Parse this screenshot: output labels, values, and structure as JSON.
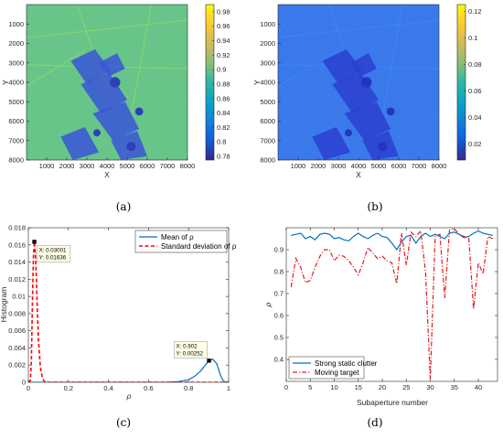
{
  "chart_data": [
    {
      "id": "a",
      "type": "heatmap",
      "panel_label": "(a)",
      "xlabel": "X",
      "ylabel": "Y",
      "xlim": [
        0,
        8000
      ],
      "ylim": [
        0,
        8000
      ],
      "x_ticks": [
        "1000",
        "2000",
        "3000",
        "4000",
        "5000",
        "6000",
        "7000",
        "8000"
      ],
      "y_ticks": [
        "1000",
        "2000",
        "3000",
        "4000",
        "5000",
        "6000",
        "7000",
        "8000"
      ],
      "colorbar": {
        "min": 0.775,
        "max": 0.99,
        "ticks": [
          "0.78",
          "0.8",
          "0.82",
          "0.84",
          "0.86",
          "0.88",
          "0.9",
          "0.92",
          "0.94",
          "0.96",
          "0.98"
        ],
        "tick_values": [
          0.78,
          0.8,
          0.82,
          0.84,
          0.86,
          0.88,
          0.9,
          0.92,
          0.94,
          0.96,
          0.98
        ]
      },
      "colors": {
        "field": "#5fbf80",
        "dark": "#3a55d8",
        "water": "#2f3fb8",
        "light": "#8fd66a"
      }
    },
    {
      "id": "b",
      "type": "heatmap",
      "panel_label": "(b)",
      "xlabel": "X",
      "ylabel": "Y",
      "xlim": [
        0,
        8000
      ],
      "ylim": [
        0,
        8000
      ],
      "x_ticks": [
        "1000",
        "2000",
        "3000",
        "4000",
        "5000",
        "6000",
        "7000",
        "8000"
      ],
      "y_ticks": [
        "1000",
        "2000",
        "3000",
        "4000",
        "5000",
        "6000",
        "7000",
        "8000"
      ],
      "colorbar": {
        "min": 0.008,
        "max": 0.125,
        "ticks": [
          "0.02",
          "0.04",
          "0.06",
          "0.08",
          "0.1",
          "0.12"
        ],
        "tick_values": [
          0.02,
          0.04,
          0.06,
          0.08,
          0.1,
          0.12
        ]
      },
      "colors": {
        "field": "#2f6fe8",
        "dark": "#2a3fd0",
        "water": "#2436c0",
        "light": "#3a8af0"
      }
    },
    {
      "id": "c",
      "type": "line",
      "panel_label": "(c)",
      "xlabel": "ρ",
      "ylabel": "Histogram",
      "xlim": [
        0,
        1
      ],
      "ylim": [
        0,
        0.018
      ],
      "x_ticks": [
        "0",
        "0.2",
        "0.4",
        "0.6",
        "0.8",
        "1"
      ],
      "x_tick_values": [
        0,
        0.2,
        0.4,
        0.6,
        0.8,
        1
      ],
      "y_ticks": [
        "0",
        "0.002",
        "0.004",
        "0.006",
        "0.008",
        "0.01",
        "0.012",
        "0.014",
        "0.016",
        "0.018"
      ],
      "y_tick_values": [
        0,
        0.002,
        0.004,
        0.006,
        0.008,
        0.01,
        0.012,
        0.014,
        0.016,
        0.018
      ],
      "legend_position": "top-right",
      "series": [
        {
          "name": "Mean of ρ",
          "color": "#0072bd",
          "style": "solid",
          "x": [
            0,
            0.6,
            0.7,
            0.75,
            0.8,
            0.83,
            0.86,
            0.88,
            0.9,
            0.92,
            0.94,
            0.95,
            0.96,
            0.97,
            0.98,
            1.0
          ],
          "y": [
            0,
            0,
            2e-05,
            8e-05,
            0.0003,
            0.0007,
            0.0013,
            0.0019,
            0.00245,
            0.0027,
            0.0022,
            0.0015,
            0.0008,
            0.0003,
            5e-05,
            0
          ]
        },
        {
          "name": "Standard deviation of ρ",
          "color": "#ff0000",
          "style": "dashed",
          "x": [
            0,
            0.01,
            0.015,
            0.02,
            0.025,
            0.03,
            0.035,
            0.04,
            0.045,
            0.05,
            0.06,
            0.07,
            0.08,
            0.1,
            0.2,
            1.0
          ],
          "y": [
            0,
            0.0002,
            0.0025,
            0.009,
            0.0145,
            0.01636,
            0.015,
            0.012,
            0.008,
            0.005,
            0.0018,
            0.0005,
            0.0001,
            0,
            0,
            0
          ]
        }
      ],
      "datatips": [
        {
          "x": 0.03001,
          "y": 0.01636,
          "lines": [
            "X: 0.03001",
            "Y: 0.01636"
          ],
          "placement": "below-right"
        },
        {
          "x": 0.902,
          "y": 0.00252,
          "lines": [
            "X: 0.902",
            "Y: 0.00252"
          ],
          "placement": "above-left"
        }
      ]
    },
    {
      "id": "d",
      "type": "line",
      "panel_label": "(d)",
      "xlabel": "Subaperture number",
      "ylabel": "ρ",
      "xlim": [
        0,
        44
      ],
      "ylim": [
        0.3,
        1.0
      ],
      "x_ticks": [
        "0",
        "5",
        "10",
        "15",
        "20",
        "25",
        "30",
        "35",
        "40"
      ],
      "x_tick_values": [
        0,
        5,
        10,
        15,
        20,
        25,
        30,
        35,
        40
      ],
      "y_ticks": [
        "0.4",
        "0.5",
        "0.6",
        "0.7",
        "0.8",
        "0.9"
      ],
      "y_tick_values": [
        0.4,
        0.5,
        0.6,
        0.7,
        0.8,
        0.9
      ],
      "legend_position": "bottom-left",
      "series": [
        {
          "name": "Strong static clutter",
          "color": "#0072bd",
          "style": "solid",
          "x": [
            1,
            2,
            3,
            4,
            5,
            6,
            7,
            8,
            9,
            10,
            11,
            12,
            13,
            14,
            15,
            16,
            17,
            18,
            19,
            20,
            21,
            22,
            23,
            24,
            25,
            26,
            27,
            28,
            29,
            30,
            31,
            32,
            33,
            34,
            35,
            36,
            37,
            38,
            39,
            40,
            41,
            42,
            43
          ],
          "y": [
            0.965,
            0.97,
            0.975,
            0.95,
            0.96,
            0.945,
            0.97,
            0.975,
            0.97,
            0.95,
            0.955,
            0.945,
            0.94,
            0.96,
            0.975,
            0.96,
            0.95,
            0.965,
            0.975,
            0.96,
            0.955,
            0.93,
            0.9,
            0.935,
            0.96,
            0.965,
            0.93,
            0.96,
            0.975,
            0.96,
            0.97,
            0.96,
            0.95,
            0.975,
            0.98,
            0.97,
            0.955,
            0.96,
            0.975,
            0.985,
            0.975,
            0.97,
            0.965
          ]
        },
        {
          "name": "Moving target",
          "color": "#e31a1c",
          "style": "dashdot",
          "x": [
            1,
            2,
            3,
            4,
            5,
            6,
            7,
            8,
            9,
            10,
            11,
            12,
            13,
            14,
            15,
            16,
            17,
            18,
            19,
            20,
            21,
            22,
            23,
            24,
            25,
            26,
            27,
            28,
            29,
            30,
            31,
            32,
            33,
            34,
            35,
            36,
            37,
            38,
            39,
            40,
            41,
            42,
            43
          ],
          "y": [
            0.73,
            0.86,
            0.82,
            0.75,
            0.76,
            0.82,
            0.87,
            0.9,
            0.9,
            0.85,
            0.875,
            0.87,
            0.85,
            0.82,
            0.785,
            0.84,
            0.91,
            0.885,
            0.86,
            0.87,
            0.85,
            0.84,
            0.745,
            0.975,
            0.83,
            0.98,
            0.96,
            0.985,
            0.8,
            0.31,
            0.96,
            0.97,
            0.68,
            0.99,
            0.995,
            0.97,
            0.96,
            0.96,
            0.63,
            0.84,
            0.79,
            0.96,
            0.95
          ]
        }
      ]
    }
  ]
}
